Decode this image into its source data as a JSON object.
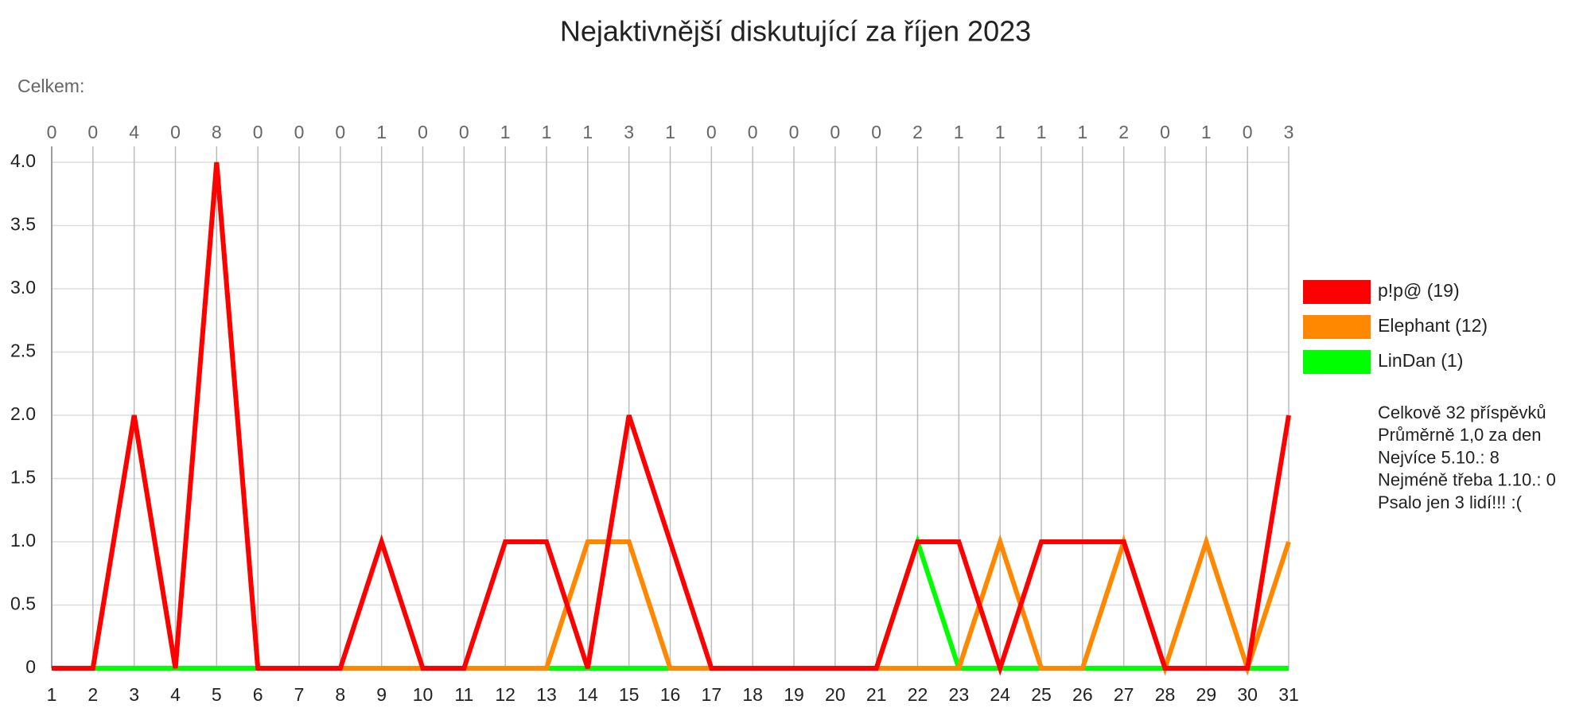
{
  "chart_data": {
    "type": "line",
    "title": "Nejaktivnější diskutující za říjen 2023",
    "totals_label": "Celkem:",
    "categories": [
      "1",
      "2",
      "3",
      "4",
      "5",
      "6",
      "7",
      "8",
      "9",
      "10",
      "11",
      "12",
      "13",
      "14",
      "15",
      "16",
      "17",
      "18",
      "19",
      "20",
      "21",
      "22",
      "23",
      "24",
      "25",
      "26",
      "27",
      "28",
      "29",
      "30",
      "31"
    ],
    "totals": [
      0,
      0,
      4,
      0,
      8,
      0,
      0,
      0,
      1,
      0,
      0,
      1,
      1,
      1,
      3,
      1,
      0,
      0,
      0,
      0,
      0,
      2,
      1,
      1,
      1,
      1,
      2,
      0,
      1,
      0,
      3
    ],
    "series": [
      {
        "name": "p!p@ (19)",
        "color": "#ff0000",
        "values": [
          0,
          0,
          2,
          0,
          4,
          0,
          0,
          0,
          1,
          0,
          0,
          1,
          1,
          0,
          2,
          1,
          0,
          0,
          0,
          0,
          0,
          1,
          1,
          0,
          1,
          1,
          1,
          0,
          0,
          0,
          2
        ]
      },
      {
        "name": "Elephant (12)",
        "color": "#ff8800",
        "values": [
          0,
          0,
          2,
          0,
          4,
          0,
          0,
          0,
          0,
          0,
          0,
          0,
          0,
          1,
          1,
          0,
          0,
          0,
          0,
          0,
          0,
          0,
          0,
          1,
          0,
          0,
          1,
          0,
          1,
          0,
          1
        ]
      },
      {
        "name": "LinDan (1)",
        "color": "#00ff00",
        "values": [
          0,
          0,
          0,
          0,
          0,
          0,
          0,
          0,
          0,
          0,
          0,
          0,
          0,
          0,
          0,
          0,
          0,
          0,
          0,
          0,
          0,
          1,
          0,
          0,
          0,
          0,
          0,
          0,
          0,
          0,
          0
        ]
      }
    ],
    "ylim": [
      0,
      4
    ],
    "yticks": [
      0,
      0.5,
      {
        "value": 1,
        "label": "1.0"
      },
      1.5,
      {
        "value": 2,
        "label": "2.0"
      },
      2.5,
      {
        "value": 3,
        "label": "3.0"
      },
      3.5,
      {
        "value": 4,
        "label": "4.0"
      }
    ],
    "grid": true,
    "legend": "right",
    "stats": [
      "Celkově 32 příspěvků",
      "Průměrně 1,0 za den",
      "Nejvíce 5.10.: 8",
      "Nejméně třeba 1.10.: 0",
      "Psalo jen 3 lidí!!! :("
    ]
  }
}
